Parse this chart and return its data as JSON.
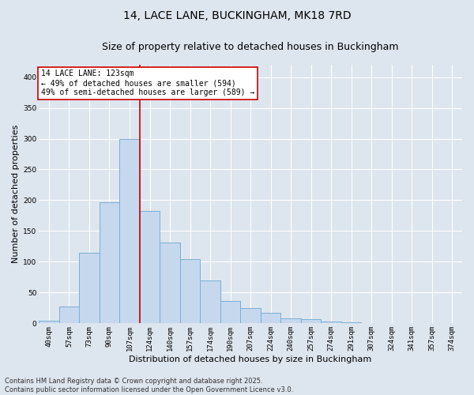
{
  "title_line1": "14, LACE LANE, BUCKINGHAM, MK18 7RD",
  "title_line2": "Size of property relative to detached houses in Buckingham",
  "xlabel": "Distribution of detached houses by size in Buckingham",
  "ylabel": "Number of detached properties",
  "categories": [
    "40sqm",
    "57sqm",
    "73sqm",
    "90sqm",
    "107sqm",
    "124sqm",
    "140sqm",
    "157sqm",
    "174sqm",
    "190sqm",
    "207sqm",
    "224sqm",
    "240sqm",
    "257sqm",
    "274sqm",
    "291sqm",
    "307sqm",
    "324sqm",
    "341sqm",
    "357sqm",
    "374sqm"
  ],
  "values": [
    5,
    27,
    115,
    197,
    300,
    183,
    131,
    104,
    70,
    37,
    25,
    17,
    8,
    7,
    3,
    2,
    0,
    1,
    0,
    1,
    0
  ],
  "bar_color": "#c5d8ee",
  "bar_edge_color": "#7aafd4",
  "red_line_index": 5,
  "annotation_text": "14 LACE LANE: 123sqm\n← 49% of detached houses are smaller (594)\n49% of semi-detached houses are larger (589) →",
  "annotation_box_color": "white",
  "annotation_border_color": "#cc0000",
  "ylim": [
    0,
    420
  ],
  "yticks": [
    0,
    50,
    100,
    150,
    200,
    250,
    300,
    350,
    400
  ],
  "bg_color": "#dde5ee",
  "grid_color": "white",
  "footer_line1": "Contains HM Land Registry data © Crown copyright and database right 2025.",
  "footer_line2": "Contains public sector information licensed under the Open Government Licence v3.0.",
  "title_fontsize": 10,
  "subtitle_fontsize": 9,
  "axis_label_fontsize": 8,
  "tick_fontsize": 6.5,
  "annotation_fontsize": 7,
  "footer_fontsize": 6
}
